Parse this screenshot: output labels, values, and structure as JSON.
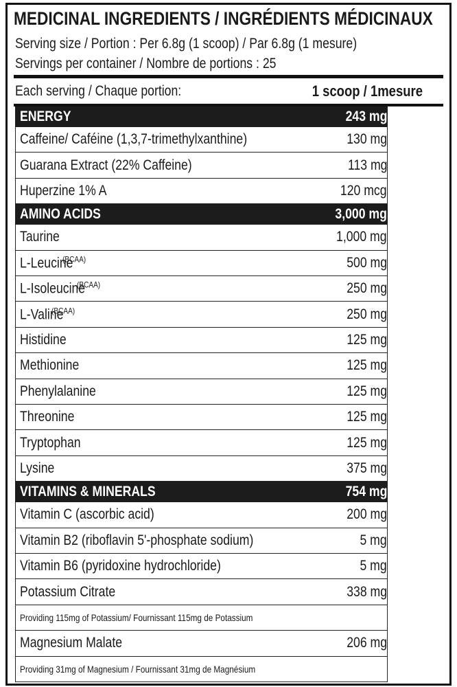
{
  "title": "MEDICINAL INGREDIENTS / INGRÉDIENTS MÉDICINAUX",
  "serving_lines": [
    "Serving size / Portion : Per 6.8g (1 scoop) / Par 6.8g (1 mesure)",
    "Servings per container / Nombre de portions : 25"
  ],
  "column_header": {
    "label": "Each serving / Chaque portion:",
    "amount": "1 scoop / 1mesure"
  },
  "sections": [
    {
      "name": "ENERGY",
      "amount": "243 mg",
      "rows": [
        {
          "name": "Caffeine/ Caféine (1,3,7-trimethylxanthine)",
          "amount": "130 mg"
        },
        {
          "name": "Guarana Extract (22% Caffeine)",
          "amount": "113 mg"
        },
        {
          "name": "Huperzine 1% A",
          "amount": "120 mcg"
        }
      ]
    },
    {
      "name": "AMINO ACIDS",
      "amount": "3,000 mg",
      "rows": [
        {
          "name": "Taurine",
          "amount": "1,000 mg"
        },
        {
          "name": "L-Leucine",
          "tag": "(BCAA)",
          "amount": "500 mg"
        },
        {
          "name": "L-Isoleucine",
          "tag": "(BCAA)",
          "amount": "250 mg"
        },
        {
          "name": "L-Valine",
          "tag": "(BCAA)",
          "amount": "250 mg"
        },
        {
          "name": "Histidine",
          "amount": "125 mg"
        },
        {
          "name": "Methionine",
          "amount": "125 mg"
        },
        {
          "name": "Phenylalanine",
          "amount": "125 mg"
        },
        {
          "name": "Threonine",
          "amount": "125 mg"
        },
        {
          "name": "Tryptophan",
          "amount": "125 mg"
        },
        {
          "name": "Lysine",
          "amount": "375 mg"
        }
      ]
    },
    {
      "name": "VITAMINS & MINERALS",
      "amount": "754 mg",
      "rows": [
        {
          "name": "Vitamin C (ascorbic acid)",
          "amount": "200 mg"
        },
        {
          "name": "Vitamin B2 (riboflavin 5'-phosphate sodium)",
          "amount": "5 mg"
        },
        {
          "name": "Vitamin B6 (pyridoxine hydrochloride)",
          "amount": "5 mg"
        },
        {
          "name": "Potassium Citrate",
          "amount": "338 mg"
        },
        {
          "note": "Providing 115mg of Potassium/ Fournissant 115mg de Potassium"
        },
        {
          "name": "Magnesium Malate",
          "amount": "206 mg"
        },
        {
          "note": "Providing 31mg of Magnesium / Fournissant 31mg de Magnésium"
        }
      ]
    }
  ]
}
